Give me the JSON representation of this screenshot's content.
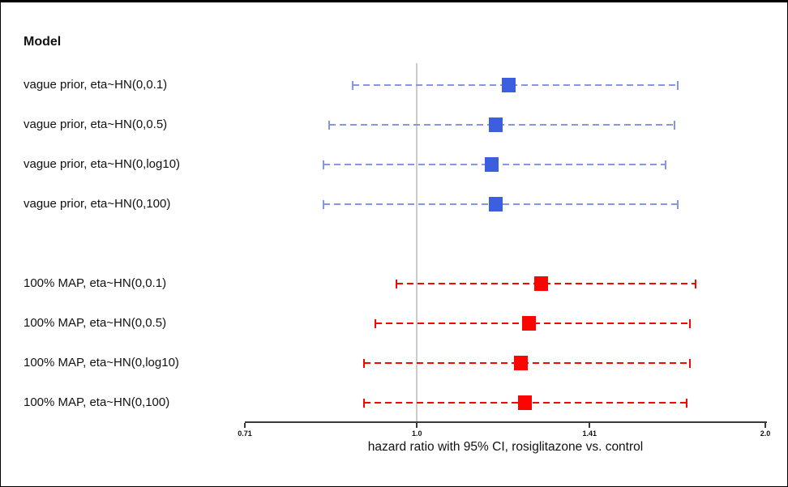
{
  "page": {
    "column_header": "Model"
  },
  "axis": {
    "label": "hazard ratio with 95% CI, rosiglitazone vs. control",
    "scale": "log",
    "min": 0.71,
    "max": 2.0,
    "tick_values": [
      0.71,
      1.0,
      1.41,
      2.0
    ],
    "tick_labels": [
      "0.71",
      "1.0",
      "1.41",
      "2.0"
    ],
    "reference_line": 1.0
  },
  "colors": {
    "vague_marker": "#3c5fe0",
    "vague_line": "#8496e8",
    "map_marker": "#fa0500",
    "map_line": "#fa0500",
    "reference_line": "#cccccc",
    "axis_line": "#3a3a3a"
  },
  "chart_data": {
    "type": "forest",
    "title": "Model",
    "xlabel": "hazard ratio with 95% CI, rosiglitazone vs. control",
    "x_scale": "log",
    "xlim": [
      0.71,
      2.0
    ],
    "x_ticks": [
      0.71,
      1.0,
      1.41,
      2.0
    ],
    "reference_line": 1.0,
    "grid": false,
    "legend": "none",
    "groups": [
      {
        "name": "vague prior",
        "marker_color": "#3c5fe0",
        "line_color": "#8496e8",
        "rows": [
          {
            "label": "vague prior, eta~HN(0,0.1)",
            "hr": 1.2,
            "lower": 0.88,
            "upper": 1.68
          },
          {
            "label": "vague prior, eta~HN(0,0.5)",
            "hr": 1.17,
            "lower": 0.84,
            "upper": 1.67
          },
          {
            "label": "vague prior, eta~HN(0,log10)",
            "hr": 1.16,
            "lower": 0.83,
            "upper": 1.64
          },
          {
            "label": "vague prior, eta~HN(0,100)",
            "hr": 1.17,
            "lower": 0.83,
            "upper": 1.68
          }
        ]
      },
      {
        "name": "100% MAP",
        "marker_color": "#fa0500",
        "line_color": "#fa0500",
        "rows": [
          {
            "label": "100% MAP, eta~HN(0,0.1)",
            "hr": 1.28,
            "lower": 0.96,
            "upper": 1.74
          },
          {
            "label": "100% MAP, eta~HN(0,0.5)",
            "hr": 1.25,
            "lower": 0.92,
            "upper": 1.72
          },
          {
            "label": "100% MAP, eta~HN(0,log10)",
            "hr": 1.23,
            "lower": 0.9,
            "upper": 1.72
          },
          {
            "label": "100% MAP, eta~HN(0,100)",
            "hr": 1.24,
            "lower": 0.9,
            "upper": 1.71
          }
        ]
      }
    ]
  }
}
